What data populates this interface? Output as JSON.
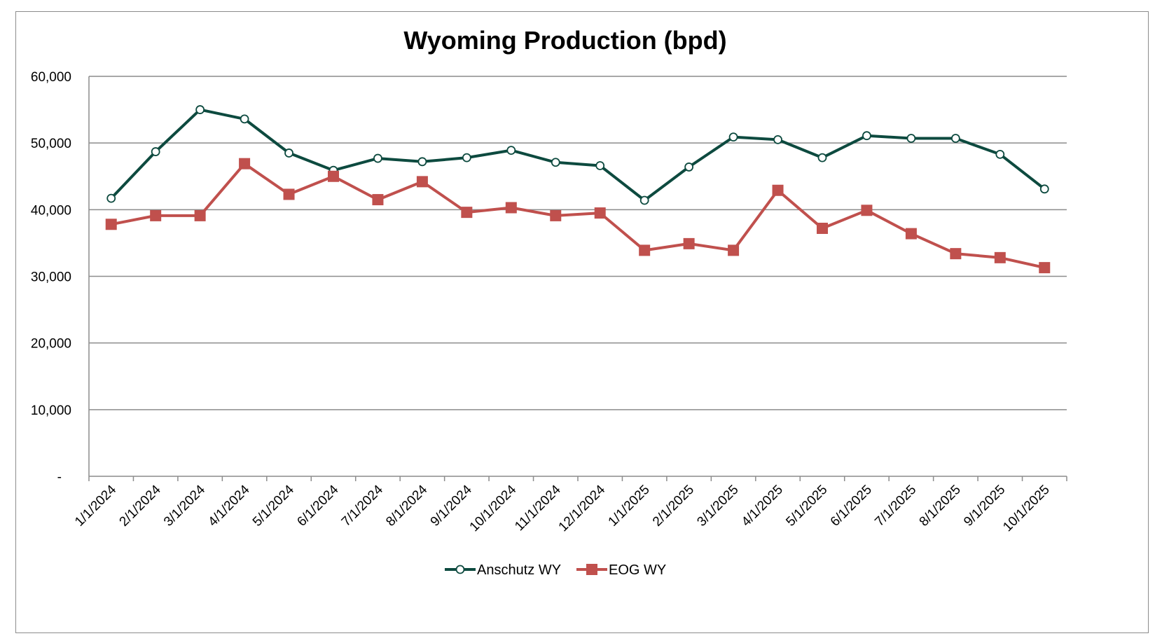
{
  "chart_data": {
    "type": "line",
    "title": "Wyoming Production (bpd)",
    "xlabel": "",
    "ylabel": "",
    "ylim": [
      0,
      60000
    ],
    "yticks": [
      0,
      10000,
      20000,
      30000,
      40000,
      50000,
      60000
    ],
    "ytick_labels": [
      "-",
      "10,000",
      "20,000",
      "30,000",
      "40,000",
      "50,000",
      "60,000"
    ],
    "grid": true,
    "legend_position": "bottom",
    "categories": [
      "1/1/2024",
      "2/1/2024",
      "3/1/2024",
      "4/1/2024",
      "5/1/2024",
      "6/1/2024",
      "7/1/2024",
      "8/1/2024",
      "9/1/2024",
      "10/1/2024",
      "11/1/2024",
      "12/1/2024",
      "1/1/2025",
      "2/1/2025",
      "3/1/2025",
      "4/1/2025",
      "5/1/2025",
      "6/1/2025",
      "7/1/2025",
      "8/1/2025",
      "9/1/2025",
      "10/1/2025"
    ],
    "series": [
      {
        "name": "Anschutz WY",
        "color": "#0d4a3f",
        "marker": "circle",
        "values": [
          41700,
          48700,
          55000,
          53600,
          48500,
          45900,
          47700,
          47200,
          47800,
          48900,
          47100,
          46600,
          41400,
          46400,
          50900,
          50500,
          47800,
          51100,
          50700,
          50700,
          48300,
          43100
        ]
      },
      {
        "name": "EOG WY",
        "color": "#c0504d",
        "marker": "square",
        "values": [
          37800,
          39100,
          39100,
          46900,
          42300,
          45000,
          41500,
          44200,
          39600,
          40300,
          39100,
          39500,
          33900,
          34900,
          33900,
          42900,
          37200,
          39900,
          36400,
          33400,
          32800,
          31300
        ]
      }
    ]
  }
}
